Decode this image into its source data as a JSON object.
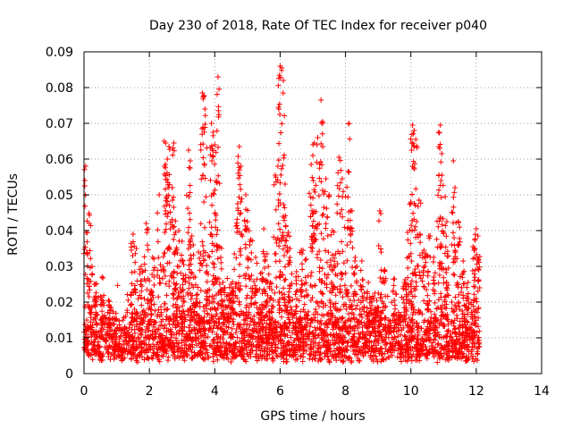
{
  "chart_data": {
    "type": "scatter",
    "title": "Day 230 of 2018, Rate Of TEC Index for receiver p040",
    "xlabel": "GPS time / hours",
    "ylabel": "ROTI / TECUs",
    "xlim": [
      0,
      14
    ],
    "ylim": [
      0,
      0.09
    ],
    "xticks": [
      0,
      2,
      4,
      6,
      8,
      10,
      12,
      14
    ],
    "xtick_labels": [
      "0",
      "2",
      "4",
      "6",
      "8",
      "10",
      "12",
      "14"
    ],
    "yticks": [
      0,
      0.01,
      0.02,
      0.03,
      0.04,
      0.05,
      0.06,
      0.07,
      0.08,
      0.09
    ],
    "ytick_labels": [
      "0",
      "0.01",
      "0.02",
      "0.03",
      "0.04",
      "0.05",
      "0.06",
      "0.07",
      "0.08",
      "0.09"
    ],
    "grid": true,
    "marker": "+",
    "color": "#ff0000",
    "x_range_of_data": [
      0,
      12.1
    ],
    "baseline_band": [
      0.005,
      0.016
    ],
    "series": [
      {
        "name": "ROTI",
        "points": [
          [
            0.05,
            0.058
          ],
          [
            0.15,
            0.0448
          ],
          [
            0.2,
            0.0322
          ],
          [
            0.35,
            0.025
          ],
          [
            0.55,
            0.027
          ],
          [
            0.75,
            0.0205
          ],
          [
            1.5,
            0.039
          ],
          [
            1.6,
            0.035
          ],
          [
            1.75,
            0.03
          ],
          [
            1.9,
            0.042
          ],
          [
            2.0,
            0.026
          ],
          [
            2.1,
            0.0325
          ],
          [
            2.3,
            0.05
          ],
          [
            2.45,
            0.065
          ],
          [
            2.5,
            0.0645
          ],
          [
            2.55,
            0.06
          ],
          [
            2.6,
            0.0635
          ],
          [
            2.7,
            0.052
          ],
          [
            2.75,
            0.0645
          ],
          [
            2.8,
            0.0395
          ],
          [
            2.9,
            0.04
          ],
          [
            3.0,
            0.037
          ],
          [
            3.05,
            0.0305
          ],
          [
            3.2,
            0.0625
          ],
          [
            3.25,
            0.0595
          ],
          [
            3.3,
            0.0385
          ],
          [
            3.4,
            0.027
          ],
          [
            3.5,
            0.034
          ],
          [
            3.62,
            0.0785
          ],
          [
            3.66,
            0.0775
          ],
          [
            3.7,
            0.074
          ],
          [
            3.8,
            0.033
          ],
          [
            3.9,
            0.07
          ],
          [
            3.95,
            0.0675
          ],
          [
            4.0,
            0.064
          ],
          [
            4.05,
            0.054
          ],
          [
            4.1,
            0.083
          ],
          [
            4.15,
            0.0355
          ],
          [
            4.25,
            0.0255
          ],
          [
            4.4,
            0.022
          ],
          [
            4.5,
            0.025
          ],
          [
            4.6,
            0.0335
          ],
          [
            4.7,
            0.0475
          ],
          [
            4.75,
            0.0635
          ],
          [
            4.8,
            0.058
          ],
          [
            4.95,
            0.05
          ],
          [
            5.0,
            0.0425
          ],
          [
            5.1,
            0.0375
          ],
          [
            5.25,
            0.0325
          ],
          [
            5.4,
            0.028
          ],
          [
            5.5,
            0.0405
          ],
          [
            5.6,
            0.0335
          ],
          [
            5.7,
            0.0255
          ],
          [
            5.85,
            0.0555
          ],
          [
            5.95,
            0.0745
          ],
          [
            6.0,
            0.086
          ],
          [
            6.05,
            0.0855
          ],
          [
            6.1,
            0.082
          ],
          [
            6.15,
            0.053
          ],
          [
            6.25,
            0.0395
          ],
          [
            6.3,
            0.0325
          ],
          [
            6.5,
            0.0285
          ],
          [
            6.65,
            0.0345
          ],
          [
            6.8,
            0.032
          ],
          [
            6.95,
            0.0585
          ],
          [
            7.0,
            0.061
          ],
          [
            7.05,
            0.0645
          ],
          [
            7.15,
            0.066
          ],
          [
            7.25,
            0.0765
          ],
          [
            7.3,
            0.0705
          ],
          [
            7.4,
            0.0545
          ],
          [
            7.5,
            0.05
          ],
          [
            7.6,
            0.04
          ],
          [
            7.7,
            0.0335
          ],
          [
            7.8,
            0.0605
          ],
          [
            7.9,
            0.0545
          ],
          [
            8.0,
            0.0495
          ],
          [
            8.1,
            0.07
          ],
          [
            8.2,
            0.0455
          ],
          [
            8.3,
            0.0325
          ],
          [
            8.5,
            0.0315
          ],
          [
            8.7,
            0.0255
          ],
          [
            8.9,
            0.0225
          ],
          [
            9.05,
            0.0455
          ],
          [
            9.2,
            0.029
          ],
          [
            9.5,
            0.0265
          ],
          [
            9.8,
            0.0255
          ],
          [
            9.9,
            0.0395
          ],
          [
            10.0,
            0.048
          ],
          [
            10.05,
            0.0695
          ],
          [
            10.1,
            0.068
          ],
          [
            10.15,
            0.0655
          ],
          [
            10.25,
            0.0485
          ],
          [
            10.4,
            0.0345
          ],
          [
            10.55,
            0.0385
          ],
          [
            10.7,
            0.0325
          ],
          [
            10.85,
            0.0675
          ],
          [
            10.9,
            0.0695
          ],
          [
            10.95,
            0.0555
          ],
          [
            11.05,
            0.0495
          ],
          [
            11.1,
            0.0425
          ],
          [
            11.3,
            0.0595
          ],
          [
            11.35,
            0.052
          ],
          [
            11.45,
            0.0425
          ],
          [
            11.6,
            0.0315
          ],
          [
            11.75,
            0.0255
          ],
          [
            11.9,
            0.0355
          ],
          [
            12.0,
            0.0405
          ],
          [
            12.05,
            0.0385
          ]
        ]
      }
    ]
  }
}
